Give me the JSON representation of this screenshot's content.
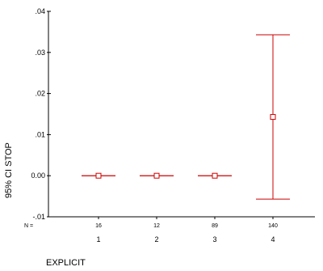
{
  "chart_data": {
    "type": "errorbar",
    "xlabel": "EXPLICIT",
    "ylabel": "95% CI STOP",
    "ylim": [
      -0.01,
      0.04
    ],
    "y_ticks": [
      {
        "value": -0.01,
        "label": "-.01"
      },
      {
        "value": 0.0,
        "label": "0.00"
      },
      {
        "value": 0.01,
        "label": ".01"
      },
      {
        "value": 0.02,
        "label": ".02"
      },
      {
        "value": 0.03,
        "label": ".03"
      },
      {
        "value": 0.04,
        "label": ".04"
      }
    ],
    "n_prefix": "N =",
    "grid": false,
    "color": "#cc0000",
    "categories": [
      {
        "label": "1",
        "n": "16",
        "mean": 0.0,
        "lower": 0.0,
        "upper": 0.0
      },
      {
        "label": "2",
        "n": "12",
        "mean": 0.0,
        "lower": 0.0,
        "upper": 0.0
      },
      {
        "label": "3",
        "n": "89",
        "mean": 0.0,
        "lower": 0.0,
        "upper": 0.0
      },
      {
        "label": "4",
        "n": "140",
        "mean": 0.0143,
        "lower": -0.0057,
        "upper": 0.0343
      }
    ]
  }
}
